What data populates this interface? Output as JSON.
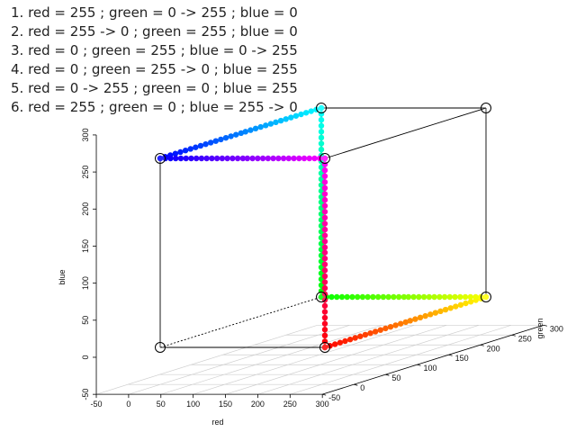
{
  "steps": [
    "1. red = 255 ; green = 0 -> 255 ; blue = 0",
    "2. red = 255 -> 0 ; green = 255 ; blue = 0",
    "3. red = 0 ; green = 255 ; blue = 0 -> 255",
    "4. red = 0 ; green = 255 -> 0 ; blue = 255",
    "5. red = 0 -> 255 ; green = 0 ; blue = 255",
    "6. red = 255 ; green = 0 ; blue = 255 -> 0"
  ],
  "chart_data": {
    "type": "scatter3d",
    "xlabel": "red",
    "ylabel": "green",
    "zlabel": "blue",
    "x_ticks": [
      "-50",
      "0",
      "50",
      "100",
      "150",
      "200",
      "250",
      "300"
    ],
    "y_ticks": [
      "-50",
      "0",
      "50",
      "100",
      "150",
      "200",
      "250",
      "300"
    ],
    "z_ticks": [
      "-50",
      "0",
      "50",
      "100",
      "150",
      "200",
      "250",
      "300"
    ],
    "xlim": [
      -50,
      300
    ],
    "ylim": [
      -50,
      300
    ],
    "zlim": [
      -50,
      300
    ],
    "grid": true,
    "cube_corners": [
      [
        0,
        0,
        0
      ],
      [
        255,
        0,
        0
      ],
      [
        0,
        255,
        0
      ],
      [
        255,
        255,
        0
      ],
      [
        0,
        0,
        255
      ],
      [
        255,
        0,
        255
      ],
      [
        0,
        255,
        255
      ],
      [
        255,
        255,
        255
      ]
    ],
    "path_segments": [
      {
        "from": [
          255,
          0,
          0
        ],
        "to": [
          255,
          255,
          0
        ]
      },
      {
        "from": [
          255,
          255,
          0
        ],
        "to": [
          0,
          255,
          0
        ]
      },
      {
        "from": [
          0,
          255,
          0
        ],
        "to": [
          0,
          255,
          255
        ]
      },
      {
        "from": [
          0,
          255,
          255
        ],
        "to": [
          0,
          0,
          255
        ]
      },
      {
        "from": [
          0,
          0,
          255
        ],
        "to": [
          255,
          0,
          255
        ]
      },
      {
        "from": [
          255,
          0,
          255
        ],
        "to": [
          255,
          0,
          0
        ]
      }
    ],
    "points_per_segment": 32
  }
}
